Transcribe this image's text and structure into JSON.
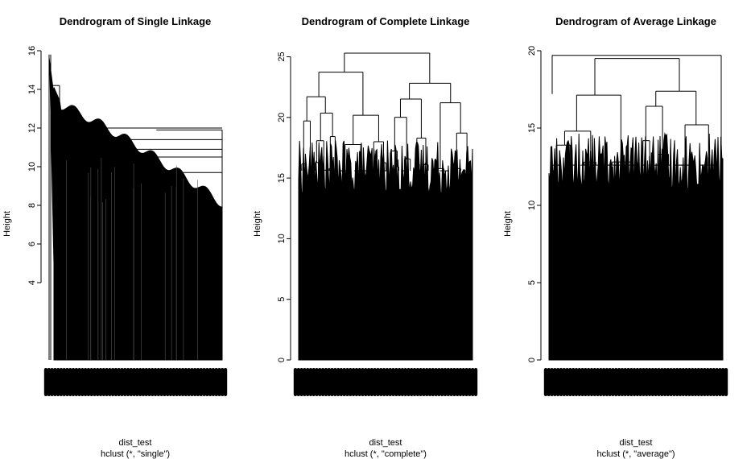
{
  "chart_data": [
    {
      "type": "dendrogram",
      "title": "Dendrogram of Single Linkage",
      "ylabel": "Height",
      "xlabel": "dist_test",
      "sublabel": "hclust (*, \"single\")",
      "method": "single",
      "ylim": [
        0,
        16
      ],
      "yticks": [
        4,
        6,
        8,
        10,
        12,
        14,
        16
      ],
      "ytick_labels": [
        "4",
        "6",
        "8",
        "10",
        "12",
        "14",
        "16"
      ],
      "top_merge_heights": [
        15.8,
        14.2,
        12.0,
        11.9,
        11.4,
        10.9,
        10.5,
        9.7,
        8.0
      ],
      "leaf_baseline": 0,
      "color": "#000000"
    },
    {
      "type": "dendrogram",
      "title": "Dendrogram of Complete Linkage",
      "ylabel": "Height",
      "xlabel": "dist_test",
      "sublabel": "hclust (*, \"complete\")",
      "method": "complete",
      "ylim": [
        0,
        25.5
      ],
      "yticks": [
        0,
        5,
        10,
        15,
        20,
        25
      ],
      "ytick_labels": [
        "0",
        "5",
        "10",
        "15",
        "20",
        "25"
      ],
      "top_merge_heights": [
        25.3,
        25.2,
        24.2,
        23.4,
        22.6,
        22.3,
        21.9,
        21.5,
        20.9,
        20.0,
        19.8
      ],
      "leaf_baseline": 0,
      "color": "#000000"
    },
    {
      "type": "dendrogram",
      "title": "Dendrogram of Average Linkage",
      "ylabel": "Height",
      "xlabel": "dist_test",
      "sublabel": "hclust (*, \"average\")",
      "method": "average",
      "ylim": [
        0,
        20
      ],
      "yticks": [
        0,
        5,
        10,
        15,
        20
      ],
      "ytick_labels": [
        "0",
        "5",
        "10",
        "15",
        "20"
      ],
      "top_merge_heights": [
        19.7,
        19.5,
        19.0,
        18.6,
        18.2,
        18.0,
        17.4,
        17.0,
        16.2
      ],
      "leaf_baseline": 0,
      "color": "#000000"
    }
  ]
}
